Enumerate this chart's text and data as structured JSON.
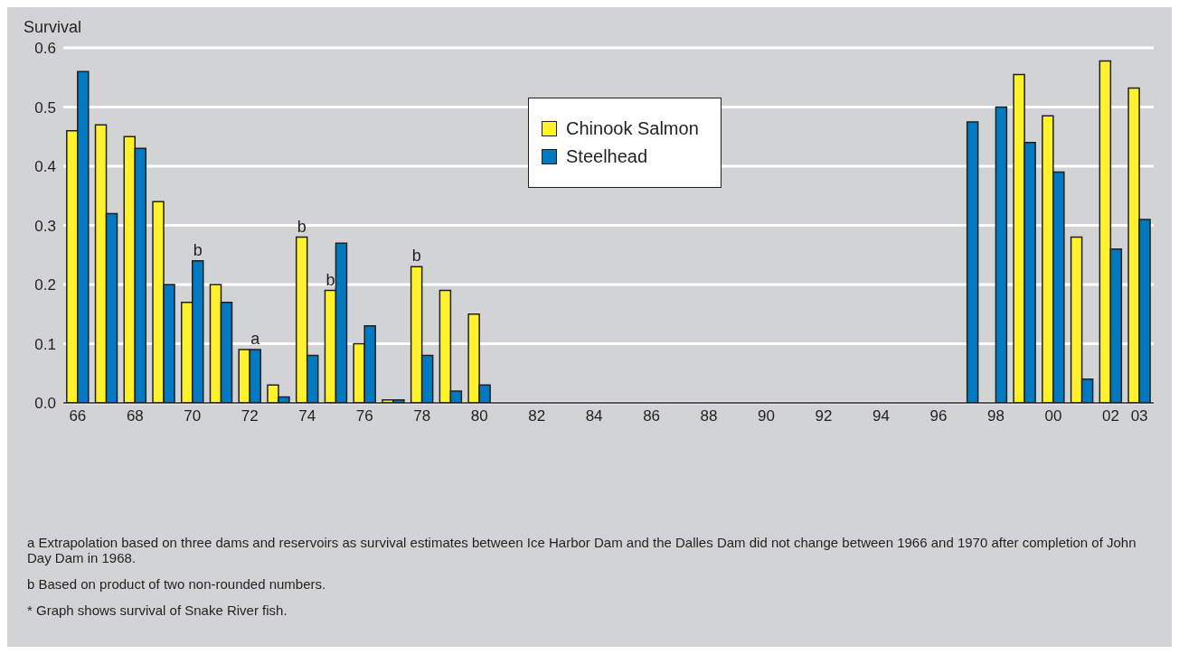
{
  "chart_data": {
    "type": "bar",
    "ylabel": "Survival",
    "categories": [
      "66",
      null,
      "68",
      null,
      "70",
      null,
      "72",
      null,
      "74",
      null,
      "76",
      null,
      "78",
      null,
      "80",
      null,
      "82",
      null,
      "84",
      null,
      "86",
      null,
      "88",
      null,
      "90",
      null,
      "92",
      null,
      "94",
      null,
      "96",
      null,
      "98",
      null,
      "00",
      null,
      "02",
      "03"
    ],
    "series": [
      {
        "name": "Chinook Salmon",
        "color": "#fff22d",
        "values": [
          0.46,
          0.47,
          0.45,
          0.34,
          0.17,
          0.2,
          0.09,
          0.03,
          0.28,
          0.19,
          0.1,
          0.005,
          0.23,
          0.19,
          0.15,
          null,
          null,
          null,
          null,
          null,
          null,
          null,
          null,
          null,
          null,
          null,
          null,
          null,
          null,
          null,
          null,
          null,
          null,
          0.555,
          0.485,
          0.28,
          0.578,
          0.532
        ],
        "value_labels": [
          null,
          null,
          null,
          null,
          null,
          null,
          null,
          null,
          "b",
          "b",
          null,
          null,
          "b",
          null,
          null,
          null,
          null,
          null,
          null,
          null,
          null,
          null,
          null,
          null,
          null,
          null,
          null,
          null,
          null,
          null,
          null,
          null,
          null,
          null,
          null,
          null,
          null,
          null
        ]
      },
      {
        "name": "Steelhead",
        "color": "#0079c1",
        "values": [
          0.56,
          0.32,
          0.43,
          0.2,
          0.24,
          0.17,
          0.09,
          0.01,
          0.08,
          0.27,
          0.13,
          0.005,
          0.08,
          0.02,
          0.03,
          null,
          null,
          null,
          null,
          null,
          null,
          null,
          null,
          null,
          null,
          null,
          null,
          null,
          null,
          null,
          null,
          0.475,
          0.5,
          0.44,
          0.39,
          0.04,
          0.26,
          0.31
        ],
        "value_labels": [
          null,
          null,
          null,
          null,
          "b",
          null,
          "a",
          null,
          null,
          null,
          null,
          null,
          null,
          null,
          null,
          null,
          null,
          null,
          null,
          null,
          null,
          null,
          null,
          null,
          null,
          null,
          null,
          null,
          null,
          null,
          null,
          null,
          null,
          null,
          null,
          null,
          null,
          null
        ]
      }
    ],
    "ylim": [
      0,
      0.6
    ],
    "yticks": [
      {
        "value": 0,
        "label": "0.0"
      },
      0.1,
      0.2,
      0.3,
      0.4,
      0.5,
      0.6
    ],
    "grid": "y",
    "legend": "top",
    "annotations": [
      "a  Extrapolation based on three dams and reservoirs as survival estimates between Ice Harbor Dam and the Dalles Dam did not change between 1966 and 1970 after completion of John Day Dam in 1968.",
      "b  Based on product of two non-rounded numbers.",
      "*  Graph shows survival of Snake River fish."
    ]
  }
}
